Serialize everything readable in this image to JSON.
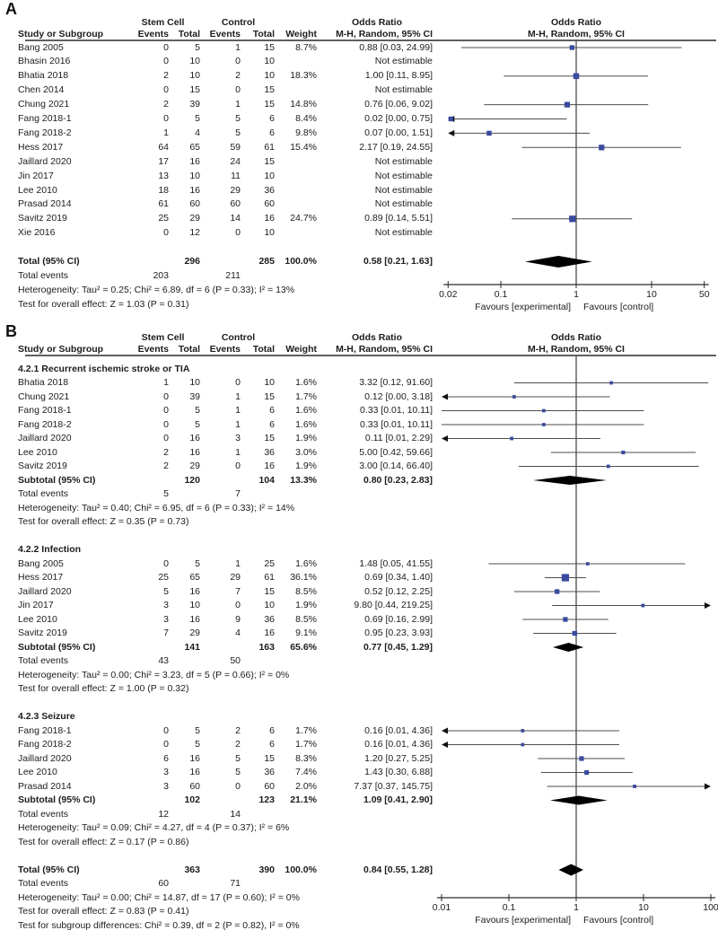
{
  "colors": {
    "marker_blue": "#3a4a9e",
    "diamond_black": "#000000",
    "ci_line_gray": "#4d4d4d",
    "axis_black": "#2a2a2a"
  },
  "chart_data": {
    "type": "forest",
    "effect_measure": "Odds Ratio",
    "model": "M-H, Random, 95% CI",
    "panels": [
      {
        "panel_label": "A",
        "headers": {
          "group1": "Stem Cell",
          "group2": "Control",
          "or_col_line1": "Odds Ratio",
          "or_col_line2": "M-H, Random, 95% CI",
          "plot_line1": "Odds Ratio",
          "plot_line2": "M-H, Random, 95% CI",
          "study": "Study or Subgroup",
          "events": "Events",
          "total": "Total",
          "weight": "Weight"
        },
        "axis": {
          "scale": "log",
          "tick_labels": [
            "0.02",
            "0.1",
            "1",
            "10",
            "50"
          ],
          "tick_values": [
            0.02,
            0.1,
            1,
            10,
            50
          ],
          "favours_left": "Favours [experimental]",
          "favours_right": "Favours [control]"
        },
        "rows": [
          {
            "type": "study",
            "name": "Bang 2005",
            "e1": "0",
            "t1": "5",
            "e2": "1",
            "t2": "15",
            "weight": "8.7%",
            "ci": "0.88 [0.03, 24.99]",
            "or": 0.88,
            "lo": 0.03,
            "hi": 24.99,
            "w": 8.7
          },
          {
            "type": "study",
            "name": "Bhasin 2016",
            "e1": "0",
            "t1": "10",
            "e2": "0",
            "t2": "10",
            "weight": "",
            "ci": "Not estimable"
          },
          {
            "type": "study",
            "name": "Bhatia 2018",
            "e1": "2",
            "t1": "10",
            "e2": "2",
            "t2": "10",
            "weight": "18.3%",
            "ci": "1.00 [0.11, 8.95]",
            "or": 1.0,
            "lo": 0.11,
            "hi": 8.95,
            "w": 18.3
          },
          {
            "type": "study",
            "name": "Chen 2014",
            "e1": "0",
            "t1": "15",
            "e2": "0",
            "t2": "15",
            "weight": "",
            "ci": "Not estimable"
          },
          {
            "type": "study",
            "name": "Chung 2021",
            "e1": "2",
            "t1": "39",
            "e2": "1",
            "t2": "15",
            "weight": "14.8%",
            "ci": "0.76 [0.06, 9.02]",
            "or": 0.76,
            "lo": 0.06,
            "hi": 9.02,
            "w": 14.8
          },
          {
            "type": "study",
            "name": "Fang 2018-1",
            "e1": "0",
            "t1": "5",
            "e2": "5",
            "t2": "6",
            "weight": "8.4%",
            "ci": "0.02 [0.00, 0.75]",
            "or": 0.02,
            "lo": 0.0,
            "hi": 0.75,
            "w": 8.4,
            "arrow": "left"
          },
          {
            "type": "study",
            "name": "Fang 2018-2",
            "e1": "1",
            "t1": "4",
            "e2": "5",
            "t2": "6",
            "weight": "9.8%",
            "ci": "0.07 [0.00, 1.51]",
            "or": 0.07,
            "lo": 0.0,
            "hi": 1.51,
            "w": 9.8,
            "arrow": "left"
          },
          {
            "type": "study",
            "name": "Hess 2017",
            "e1": "64",
            "t1": "65",
            "e2": "59",
            "t2": "61",
            "weight": "15.4%",
            "ci": "2.17 [0.19, 24.55]",
            "or": 2.17,
            "lo": 0.19,
            "hi": 24.55,
            "w": 15.4
          },
          {
            "type": "study",
            "name": "Jaillard 2020",
            "e1": "17",
            "t1": "16",
            "e2": "24",
            "t2": "15",
            "weight": "",
            "ci": "Not estimable"
          },
          {
            "type": "study",
            "name": "Jin 2017",
            "e1": "13",
            "t1": "10",
            "e2": "11",
            "t2": "10",
            "weight": "",
            "ci": "Not estimable"
          },
          {
            "type": "study",
            "name": "Lee 2010",
            "e1": "18",
            "t1": "16",
            "e2": "29",
            "t2": "36",
            "weight": "",
            "ci": "Not estimable"
          },
          {
            "type": "study",
            "name": "Prasad 2014",
            "e1": "61",
            "t1": "60",
            "e2": "60",
            "t2": "60",
            "weight": "",
            "ci": "Not estimable"
          },
          {
            "type": "study",
            "name": "Savitz 2019",
            "e1": "25",
            "t1": "29",
            "e2": "14",
            "t2": "16",
            "weight": "24.7%",
            "ci": "0.89 [0.14, 5.51]",
            "or": 0.89,
            "lo": 0.14,
            "hi": 5.51,
            "w": 24.7
          },
          {
            "type": "study",
            "name": "Xie 2016",
            "e1": "0",
            "t1": "12",
            "e2": "0",
            "t2": "10",
            "weight": "",
            "ci": "Not estimable"
          },
          {
            "type": "blank"
          },
          {
            "type": "total",
            "name": "Total (95% CI)",
            "t1": "296",
            "t2": "285",
            "weight": "100.0%",
            "ci": "0.58 [0.21, 1.63]",
            "or": 0.58,
            "lo": 0.21,
            "hi": 1.63
          },
          {
            "type": "events",
            "name": "Total events",
            "e1": "203",
            "e2": "211"
          },
          {
            "type": "stat",
            "text": "Heterogeneity: Tau² = 0.25; Chi² = 6.89, df = 6 (P = 0.33); I² = 13%"
          },
          {
            "type": "stat",
            "text": "Test for overall effect: Z = 1.03 (P = 0.31)"
          }
        ]
      },
      {
        "panel_label": "B",
        "headers": {
          "group1": "Stem Cell",
          "group2": "Control",
          "or_col_line1": "Odds Ratio",
          "or_col_line2": "M-H, Random, 95% CI",
          "plot_line1": "Odds Ratio",
          "plot_line2": "M-H, Random, 95% CI",
          "study": "Study or Subgroup",
          "events": "Events",
          "total": "Total",
          "weight": "Weight"
        },
        "axis": {
          "scale": "log",
          "tick_labels": [
            "0.01",
            "0.1",
            "1",
            "10",
            "100"
          ],
          "tick_values": [
            0.01,
            0.1,
            1,
            10,
            100
          ],
          "favours_left": "Favours [experimental]",
          "favours_right": "Favours [control]"
        },
        "rows": [
          {
            "type": "title",
            "text": "4.2.1 Recurrent ischemic stroke or TIA"
          },
          {
            "type": "study",
            "name": "Bhatia 2018",
            "e1": "1",
            "t1": "10",
            "e2": "0",
            "t2": "10",
            "weight": "1.6%",
            "ci": "3.32 [0.12, 91.60]",
            "or": 3.32,
            "lo": 0.12,
            "hi": 91.6,
            "w": 1.6
          },
          {
            "type": "study",
            "name": "Chung 2021",
            "e1": "0",
            "t1": "39",
            "e2": "1",
            "t2": "15",
            "weight": "1.7%",
            "ci": "0.12 [0.00, 3.18]",
            "or": 0.12,
            "lo": 0.0,
            "hi": 3.18,
            "w": 1.7,
            "arrow": "left"
          },
          {
            "type": "study",
            "name": "Fang 2018-1",
            "e1": "0",
            "t1": "5",
            "e2": "1",
            "t2": "6",
            "weight": "1.6%",
            "ci": "0.33 [0.01, 10.11]",
            "or": 0.33,
            "lo": 0.01,
            "hi": 10.11,
            "w": 1.6
          },
          {
            "type": "study",
            "name": "Fang 2018-2",
            "e1": "0",
            "t1": "5",
            "e2": "1",
            "t2": "6",
            "weight": "1.6%",
            "ci": "0.33 [0.01, 10.11]",
            "or": 0.33,
            "lo": 0.01,
            "hi": 10.11,
            "w": 1.6
          },
          {
            "type": "study",
            "name": "Jaillard 2020",
            "e1": "0",
            "t1": "16",
            "e2": "3",
            "t2": "15",
            "weight": "1.9%",
            "ci": "0.11 [0.01, 2.29]",
            "or": 0.11,
            "lo": 0.01,
            "hi": 2.29,
            "w": 1.9,
            "arrow": "left"
          },
          {
            "type": "study",
            "name": "Lee 2010",
            "e1": "2",
            "t1": "16",
            "e2": "1",
            "t2": "36",
            "weight": "3.0%",
            "ci": "5.00 [0.42, 59.66]",
            "or": 5.0,
            "lo": 0.42,
            "hi": 59.66,
            "w": 3.0
          },
          {
            "type": "study",
            "name": "Savitz 2019",
            "e1": "2",
            "t1": "29",
            "e2": "0",
            "t2": "16",
            "weight": "1.9%",
            "ci": "3.00 [0.14, 66.40]",
            "or": 3.0,
            "lo": 0.14,
            "hi": 66.4,
            "w": 1.9
          },
          {
            "type": "subtotal",
            "name": "Subtotal (95% CI)",
            "t1": "120",
            "t2": "104",
            "weight": "13.3%",
            "ci": "0.80 [0.23, 2.83]",
            "or": 0.8,
            "lo": 0.23,
            "hi": 2.83
          },
          {
            "type": "events",
            "name": "Total events",
            "e1": "5",
            "e2": "7"
          },
          {
            "type": "stat",
            "text": "Heterogeneity: Tau² = 0.40; Chi² = 6.95, df = 6 (P = 0.33); I² = 14%"
          },
          {
            "type": "stat",
            "text": "Test for overall effect: Z = 0.35 (P = 0.73)"
          },
          {
            "type": "blank"
          },
          {
            "type": "title",
            "text": "4.2.2 Infection"
          },
          {
            "type": "study",
            "name": "Bang 2005",
            "e1": "0",
            "t1": "5",
            "e2": "1",
            "t2": "25",
            "weight": "1.6%",
            "ci": "1.48 [0.05, 41.55]",
            "or": 1.48,
            "lo": 0.05,
            "hi": 41.55,
            "w": 1.6
          },
          {
            "type": "study",
            "name": "Hess 2017",
            "e1": "25",
            "t1": "65",
            "e2": "29",
            "t2": "61",
            "weight": "36.1%",
            "ci": "0.69 [0.34, 1.40]",
            "or": 0.69,
            "lo": 0.34,
            "hi": 1.4,
            "w": 36.1
          },
          {
            "type": "study",
            "name": "Jaillard 2020",
            "e1": "5",
            "t1": "16",
            "e2": "7",
            "t2": "15",
            "weight": "8.5%",
            "ci": "0.52 [0.12, 2.25]",
            "or": 0.52,
            "lo": 0.12,
            "hi": 2.25,
            "w": 8.5
          },
          {
            "type": "study",
            "name": "Jin 2017",
            "e1": "3",
            "t1": "10",
            "e2": "0",
            "t2": "10",
            "weight": "1.9%",
            "ci": "9.80 [0.44, 219.25]",
            "or": 9.8,
            "lo": 0.44,
            "hi": 219.25,
            "w": 1.9,
            "arrow": "right"
          },
          {
            "type": "study",
            "name": "Lee 2010",
            "e1": "3",
            "t1": "16",
            "e2": "9",
            "t2": "36",
            "weight": "8.5%",
            "ci": "0.69 [0.16, 2.99]",
            "or": 0.69,
            "lo": 0.16,
            "hi": 2.99,
            "w": 8.5
          },
          {
            "type": "study",
            "name": "Savitz 2019",
            "e1": "7",
            "t1": "29",
            "e2": "4",
            "t2": "16",
            "weight": "9.1%",
            "ci": "0.95 [0.23, 3.93]",
            "or": 0.95,
            "lo": 0.23,
            "hi": 3.93,
            "w": 9.1
          },
          {
            "type": "subtotal",
            "name": "Subtotal (95% CI)",
            "t1": "141",
            "t2": "163",
            "weight": "65.6%",
            "ci": "0.77 [0.45, 1.29]",
            "or": 0.77,
            "lo": 0.45,
            "hi": 1.29
          },
          {
            "type": "events",
            "name": "Total events",
            "e1": "43",
            "e2": "50"
          },
          {
            "type": "stat",
            "text": "Heterogeneity: Tau² = 0.00; Chi² = 3.23, df = 5 (P = 0.66); I² = 0%"
          },
          {
            "type": "stat",
            "text": "Test for overall effect: Z = 1.00 (P = 0.32)"
          },
          {
            "type": "blank"
          },
          {
            "type": "title",
            "text": "4.2.3 Seizure"
          },
          {
            "type": "study",
            "name": "Fang 2018-1",
            "e1": "0",
            "t1": "5",
            "e2": "2",
            "t2": "6",
            "weight": "1.7%",
            "ci": "0.16 [0.01, 4.36]",
            "or": 0.16,
            "lo": 0.01,
            "hi": 4.36,
            "w": 1.7,
            "arrow": "left"
          },
          {
            "type": "study",
            "name": "Fang 2018-2",
            "e1": "0",
            "t1": "5",
            "e2": "2",
            "t2": "6",
            "weight": "1.7%",
            "ci": "0.16 [0.01, 4.36]",
            "or": 0.16,
            "lo": 0.01,
            "hi": 4.36,
            "w": 1.7,
            "arrow": "left"
          },
          {
            "type": "study",
            "name": "Jaillard 2020",
            "e1": "6",
            "t1": "16",
            "e2": "5",
            "t2": "15",
            "weight": "8.3%",
            "ci": "1.20 [0.27, 5.25]",
            "or": 1.2,
            "lo": 0.27,
            "hi": 5.25,
            "w": 8.3
          },
          {
            "type": "study",
            "name": "Lee 2010",
            "e1": "3",
            "t1": "16",
            "e2": "5",
            "t2": "36",
            "weight": "7.4%",
            "ci": "1.43 [0.30, 6.88]",
            "or": 1.43,
            "lo": 0.3,
            "hi": 6.88,
            "w": 7.4
          },
          {
            "type": "study",
            "name": "Prasad 2014",
            "e1": "3",
            "t1": "60",
            "e2": "0",
            "t2": "60",
            "weight": "2.0%",
            "ci": "7.37 [0.37, 145.75]",
            "or": 7.37,
            "lo": 0.37,
            "hi": 145.75,
            "w": 2.0,
            "arrow": "right"
          },
          {
            "type": "subtotal",
            "name": "Subtotal (95% CI)",
            "t1": "102",
            "t2": "123",
            "weight": "21.1%",
            "ci": "1.09 [0.41, 2.90]",
            "or": 1.09,
            "lo": 0.41,
            "hi": 2.9
          },
          {
            "type": "events",
            "name": "Total events",
            "e1": "12",
            "e2": "14"
          },
          {
            "type": "stat",
            "text": "Heterogeneity: Tau² = 0.09; Chi² = 4.27, df = 4 (P = 0.37); I² = 6%"
          },
          {
            "type": "stat",
            "text": "Test for overall effect: Z = 0.17 (P = 0.86)"
          },
          {
            "type": "blank"
          },
          {
            "type": "total",
            "name": "Total (95% CI)",
            "t1": "363",
            "t2": "390",
            "weight": "100.0%",
            "ci": "0.84 [0.55, 1.28]",
            "or": 0.84,
            "lo": 0.55,
            "hi": 1.28
          },
          {
            "type": "events",
            "name": "Total events",
            "e1": "60",
            "e2": "71"
          },
          {
            "type": "stat",
            "text": "Heterogeneity: Tau² = 0.00; Chi² = 14.87, df = 17 (P = 0.60); I² = 0%"
          },
          {
            "type": "stat",
            "text": "Test for overall effect: Z = 0.83 (P = 0.41)"
          },
          {
            "type": "stat",
            "text": "Test for subgroup differences: Chi² = 0.39, df = 2 (P = 0.82), I² = 0%"
          }
        ]
      }
    ]
  }
}
